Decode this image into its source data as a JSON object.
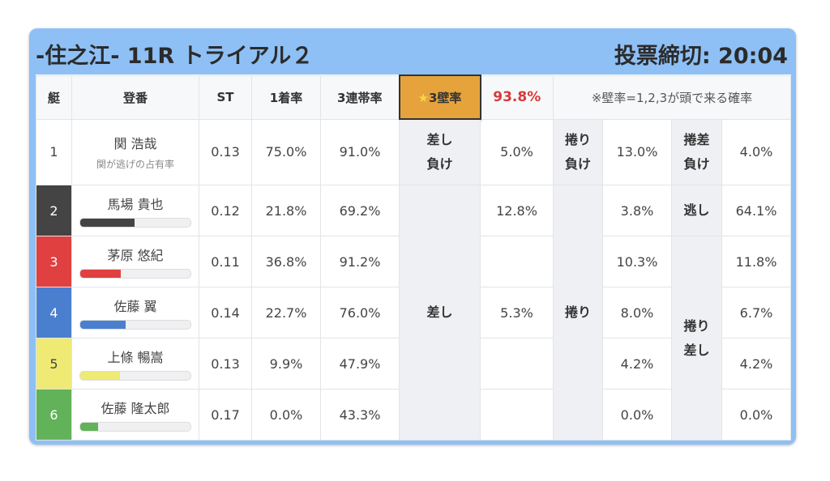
{
  "header": {
    "title": "-住之江- 11R トライアル２",
    "deadline": "投票締切: 20:04"
  },
  "columns": [
    "艇",
    "登番",
    "ST",
    "1着率",
    "3連帯率"
  ],
  "wall": {
    "star": "★",
    "label": "3壁率",
    "value": "93.8%",
    "note": "※壁率=1,2,3が頭で来る確率"
  },
  "rows": [
    {
      "no": "1",
      "name": "関 浩哉",
      "sub": "関が逃げの占有率",
      "st": "0.13",
      "win": "75.0%",
      "top3": "91.0%",
      "color": "#ffffff"
    },
    {
      "no": "2",
      "name": "馬場 貴也",
      "st": "0.12",
      "win": "21.8%",
      "top3": "69.2%",
      "color": "#444444",
      "bar": 0.49
    },
    {
      "no": "3",
      "name": "茅原 悠紀",
      "st": "0.11",
      "win": "36.8%",
      "top3": "91.2%",
      "color": "#e04040",
      "bar": 0.37
    },
    {
      "no": "4",
      "name": "佐藤 翼",
      "st": "0.14",
      "win": "22.7%",
      "top3": "76.0%",
      "color": "#4a7fd0",
      "bar": 0.41
    },
    {
      "no": "5",
      "name": "上條 暢嵩",
      "st": "0.13",
      "win": "9.9%",
      "top3": "47.9%",
      "color": "#eeea74",
      "bar": 0.36
    },
    {
      "no": "6",
      "name": "佐藤 隆太郎",
      "st": "0.17",
      "win": "0.0%",
      "top3": "43.3%",
      "color": "#62b25a",
      "bar": 0.16
    }
  ],
  "labels": {
    "sashi_make": "差し\n負け",
    "makuri_make": "捲り\n負け",
    "makurisashi_make": "捲差\n負け",
    "sashi": "差し",
    "makuri": "捲り",
    "nige": "逃し",
    "makurisashi": "捲り\n差し"
  },
  "values": {
    "r1": [
      "5.0%",
      "13.0%",
      "4.0%"
    ],
    "sashi": [
      "12.8%",
      "",
      "5.3%",
      "",
      ""
    ],
    "makuri": [
      "3.8%",
      "10.3%",
      "8.0%",
      "4.2%",
      "0.0%"
    ],
    "nige": "64.1%",
    "makurisashi": [
      "11.8%",
      "6.7%",
      "4.2%",
      "0.0%"
    ]
  }
}
